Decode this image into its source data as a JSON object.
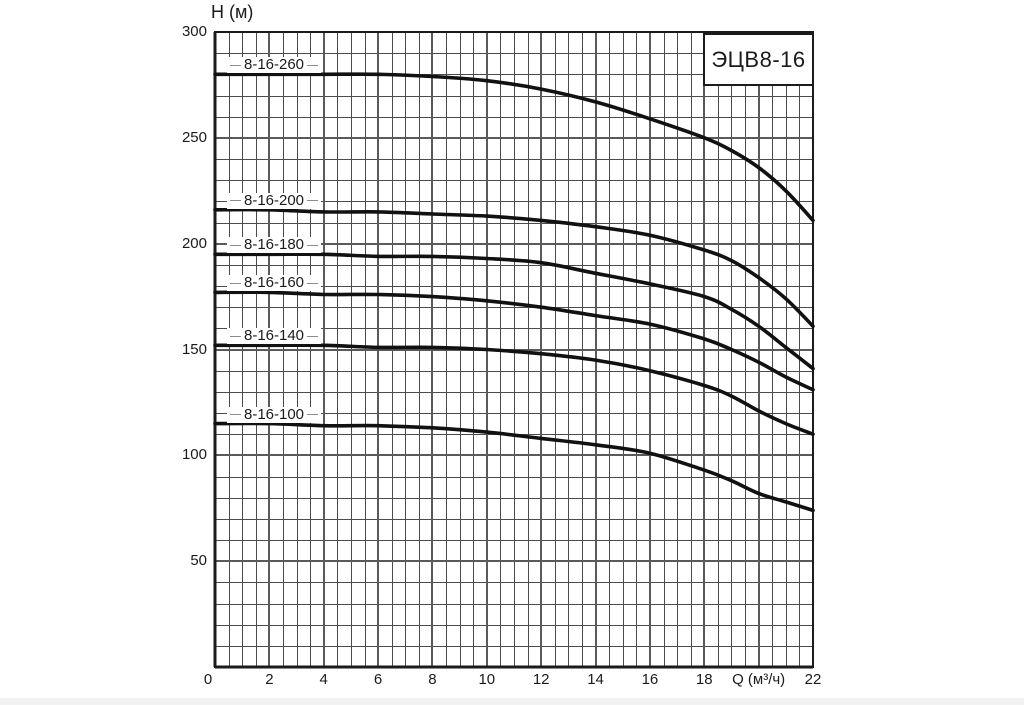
{
  "title_box": {
    "text": "ЭЦВ8-16"
  },
  "y_axis": {
    "label": "H (м)",
    "tick_labels": [
      "300",
      "250",
      "200",
      "150",
      "100",
      "50"
    ]
  },
  "x_axis": {
    "tick_labels": [
      "0",
      "2",
      "4",
      "6",
      "8",
      "10",
      "12",
      "14",
      "16",
      "18",
      "Q (м³/ч)",
      "22"
    ]
  },
  "chart_data": {
    "type": "line",
    "title": "ЭЦВ8-16",
    "xlabel": "Q (м³/ч)",
    "ylabel": "H (м)",
    "xlim": [
      0,
      22
    ],
    "ylim": [
      0,
      300
    ],
    "x_major_step": 2,
    "x_minor_step": 0.5,
    "y_major_step": 50,
    "y_minor_step": 10,
    "grid": "on",
    "legend": "inline labels above left end of each curve",
    "series": [
      {
        "name": "8-16-260",
        "points": [
          [
            0,
            280
          ],
          [
            2,
            280
          ],
          [
            4,
            280
          ],
          [
            6,
            280
          ],
          [
            8,
            279
          ],
          [
            10,
            277
          ],
          [
            12,
            273
          ],
          [
            14,
            267
          ],
          [
            16,
            259
          ],
          [
            18,
            250
          ],
          [
            19,
            244
          ],
          [
            20,
            236
          ],
          [
            21,
            225
          ],
          [
            22,
            211
          ]
        ]
      },
      {
        "name": "8-16-200",
        "points": [
          [
            0,
            216
          ],
          [
            2,
            216
          ],
          [
            4,
            215
          ],
          [
            6,
            215
          ],
          [
            8,
            214
          ],
          [
            10,
            213
          ],
          [
            12,
            211
          ],
          [
            14,
            208
          ],
          [
            16,
            204
          ],
          [
            18,
            197
          ],
          [
            19,
            192
          ],
          [
            20,
            184
          ],
          [
            21,
            174
          ],
          [
            22,
            161
          ]
        ]
      },
      {
        "name": "8-16-180",
        "points": [
          [
            0,
            195
          ],
          [
            2,
            195
          ],
          [
            4,
            195
          ],
          [
            6,
            194
          ],
          [
            8,
            194
          ],
          [
            10,
            193
          ],
          [
            12,
            191
          ],
          [
            14,
            186
          ],
          [
            16,
            181
          ],
          [
            18,
            175
          ],
          [
            19,
            169
          ],
          [
            20,
            161
          ],
          [
            21,
            151
          ],
          [
            22,
            141
          ]
        ]
      },
      {
        "name": "8-16-160",
        "points": [
          [
            0,
            177
          ],
          [
            2,
            177
          ],
          [
            4,
            176
          ],
          [
            6,
            176
          ],
          [
            8,
            175
          ],
          [
            10,
            173
          ],
          [
            12,
            170
          ],
          [
            14,
            166
          ],
          [
            16,
            162
          ],
          [
            18,
            155
          ],
          [
            19,
            150
          ],
          [
            20,
            144
          ],
          [
            21,
            137
          ],
          [
            22,
            131
          ]
        ]
      },
      {
        "name": "8-16-140",
        "points": [
          [
            0,
            152
          ],
          [
            2,
            152
          ],
          [
            4,
            152
          ],
          [
            6,
            151
          ],
          [
            8,
            151
          ],
          [
            10,
            150
          ],
          [
            12,
            148
          ],
          [
            14,
            145
          ],
          [
            16,
            140
          ],
          [
            18,
            133
          ],
          [
            19,
            128
          ],
          [
            20,
            121
          ],
          [
            21,
            115
          ],
          [
            22,
            110
          ]
        ]
      },
      {
        "name": "8-16-100",
        "points": [
          [
            0,
            115
          ],
          [
            2,
            115
          ],
          [
            4,
            114
          ],
          [
            6,
            114
          ],
          [
            8,
            113
          ],
          [
            10,
            111
          ],
          [
            12,
            108
          ],
          [
            14,
            105
          ],
          [
            16,
            101
          ],
          [
            18,
            93
          ],
          [
            19,
            88
          ],
          [
            20,
            82
          ],
          [
            21,
            78
          ],
          [
            22,
            74
          ]
        ]
      }
    ]
  },
  "colors": {
    "background": "#ffffff",
    "ink": "#1b1b1b",
    "curve": "#111111",
    "grid_minor": "#4b4b4b",
    "grid_major": "#5a5a5a",
    "border": "#1b1b1b",
    "label_dash": "#8c8c8c"
  }
}
